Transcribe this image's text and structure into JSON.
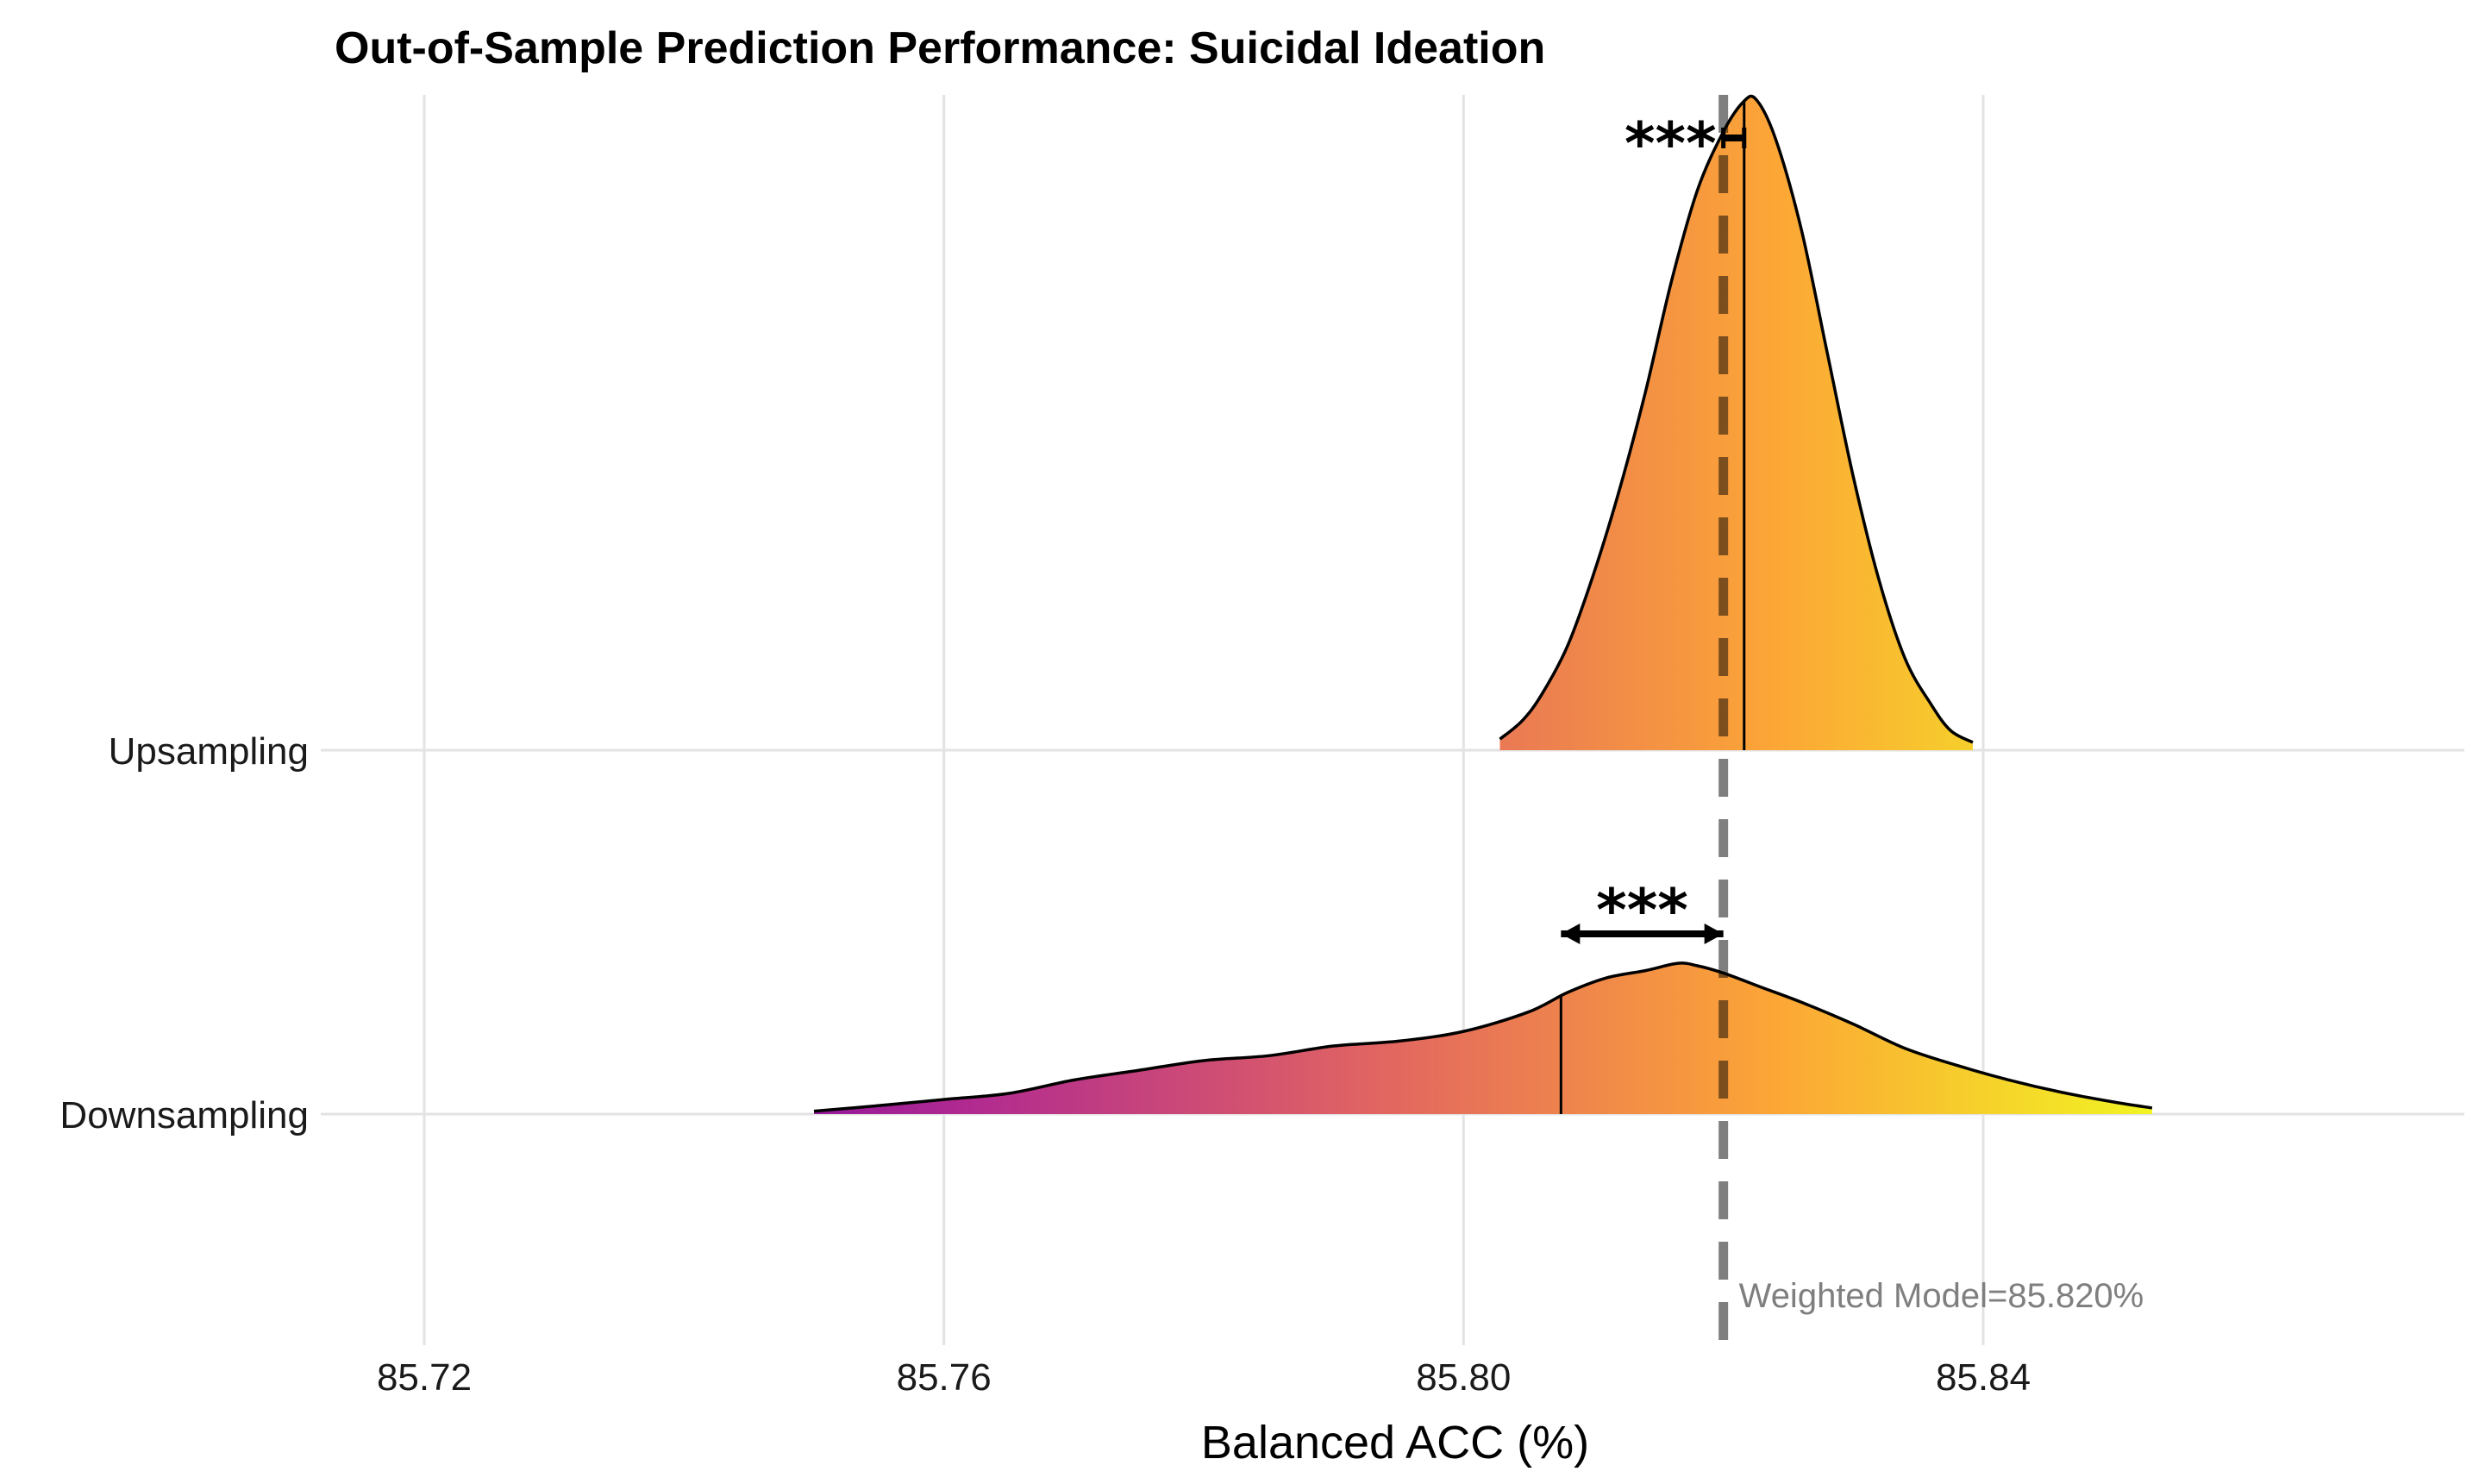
{
  "chart_data": {
    "type": "ridgeline",
    "title": "Out-of-Sample Prediction Performance: Suicidal Ideation",
    "xlabel": "Balanced ACC (%)",
    "ylabel": "",
    "xlim": [
      85.712,
      85.875
    ],
    "x_ticks": [
      "85.72",
      "85.76",
      "85.80",
      "85.84"
    ],
    "x_tick_values": [
      85.72,
      85.76,
      85.8,
      85.84
    ],
    "grid": true,
    "fill": "gradient by x (plasma: purple → orange → yellow)",
    "reference_line": {
      "x": 85.82,
      "label": "Weighted Model=85.820%",
      "style": "dashed",
      "color": "#7f7f7f"
    },
    "series": [
      {
        "name": "Upsampling",
        "median": 85.8216,
        "comparison": {
          "from": 85.82,
          "to": 85.8216,
          "label": "***"
        },
        "density": [
          [
            85.8028,
            0.017
          ],
          [
            85.8045,
            0.045
          ],
          [
            85.806,
            0.085
          ],
          [
            85.808,
            0.16
          ],
          [
            85.81,
            0.27
          ],
          [
            85.812,
            0.4
          ],
          [
            85.814,
            0.55
          ],
          [
            85.816,
            0.72
          ],
          [
            85.818,
            0.86
          ],
          [
            85.82,
            0.95
          ],
          [
            85.8215,
            0.995
          ],
          [
            85.8225,
            1.0
          ],
          [
            85.824,
            0.94
          ],
          [
            85.826,
            0.8
          ],
          [
            85.828,
            0.61
          ],
          [
            85.83,
            0.42
          ],
          [
            85.832,
            0.26
          ],
          [
            85.834,
            0.14
          ],
          [
            85.836,
            0.07
          ],
          [
            85.8375,
            0.03
          ],
          [
            85.8392,
            0.012
          ]
        ]
      },
      {
        "name": "Downsampling",
        "median": 85.8075,
        "comparison": {
          "from": 85.8075,
          "to": 85.82,
          "label": "***"
        },
        "density": [
          [
            85.75,
            0.012
          ],
          [
            85.755,
            0.035
          ],
          [
            85.76,
            0.06
          ],
          [
            85.765,
            0.085
          ],
          [
            85.77,
            0.14
          ],
          [
            85.775,
            0.18
          ],
          [
            85.78,
            0.22
          ],
          [
            85.785,
            0.24
          ],
          [
            85.79,
            0.28
          ],
          [
            85.795,
            0.3
          ],
          [
            85.8,
            0.34
          ],
          [
            85.805,
            0.42
          ],
          [
            85.808,
            0.5
          ],
          [
            85.811,
            0.56
          ],
          [
            85.814,
            0.59
          ],
          [
            85.8165,
            0.62
          ],
          [
            85.818,
            0.61
          ],
          [
            85.82,
            0.58
          ],
          [
            85.823,
            0.52
          ],
          [
            85.826,
            0.46
          ],
          [
            85.83,
            0.37
          ],
          [
            85.834,
            0.27
          ],
          [
            85.838,
            0.2
          ],
          [
            85.842,
            0.14
          ],
          [
            85.846,
            0.09
          ],
          [
            85.85,
            0.05
          ],
          [
            85.853,
            0.025
          ]
        ]
      }
    ]
  }
}
